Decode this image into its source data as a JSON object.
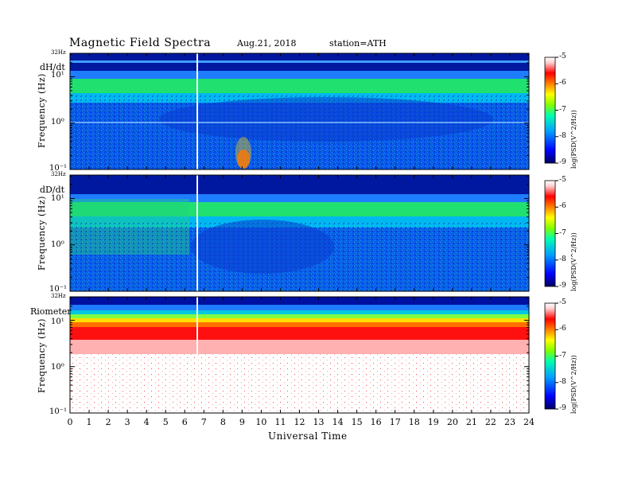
{
  "header": {
    "title": "Magnetic  Field  Spectra",
    "date": "Aug.21, 2018",
    "station": "station=ATH"
  },
  "colorbar": {
    "ticks": [
      "-5",
      "-6",
      "-7",
      "-8",
      "-9"
    ],
    "label": "log(PSD(V^2/Hz))",
    "colors": [
      "#000060",
      "#0000ff",
      "#00a0ff",
      "#00ffb0",
      "#80ff00",
      "#ffff00",
      "#ff8000",
      "#ff0000",
      "#ffd0d0",
      "#ffffff"
    ]
  },
  "chart_data": {
    "type": "heatmap",
    "xlabel": "Universal Time",
    "ylabel": "Frequency  (Hz)",
    "x_ticks": [
      "0",
      "1",
      "2",
      "3",
      "4",
      "5",
      "6",
      "7",
      "8",
      "9",
      "10",
      "11",
      "12",
      "13",
      "14",
      "15",
      "16",
      "17",
      "18",
      "19",
      "20",
      "21",
      "22",
      "23",
      "24"
    ],
    "xlim": [
      0,
      24
    ],
    "y_scale": "log",
    "ylim": [
      0.1,
      32
    ],
    "y_ticks": [
      "32Hz",
      "10¹",
      "10⁰",
      "10⁻¹"
    ],
    "color_scale": {
      "min": -9,
      "max": -5,
      "label": "log(PSD(V^2/Hz))"
    },
    "panels": [
      {
        "name": "dH/dt",
        "dominant_band_hz": [
          3,
          10
        ],
        "band_level": -6.9,
        "background_level": -8.3
      },
      {
        "name": "dD/dt",
        "dominant_band_hz": [
          3,
          10
        ],
        "band_level": -6.9,
        "background_level": -8.1
      },
      {
        "name": "Riometer",
        "dominant_band_hz": [
          3,
          12
        ],
        "band_level": -5.8,
        "background_level": -4.5
      }
    ],
    "marker_time_ut": 6.7
  }
}
